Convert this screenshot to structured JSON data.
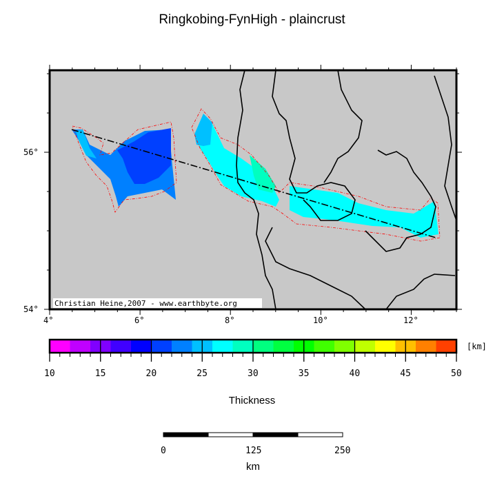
{
  "title": "Ringkobing-FynHigh - plaincrust",
  "map": {
    "lon_labels": [
      "4°",
      "6°",
      "8°",
      "10°",
      "12°"
    ],
    "lat_labels": [
      "56°",
      "54°"
    ],
    "credit": "Christian Heine,2007 - www.earthbyte.org",
    "land_color": "#c8c8c8",
    "outline_color": "#ff0000"
  },
  "colorbar": {
    "unit": "[km]",
    "title": "Thickness",
    "tick_labels": [
      "10",
      "15",
      "20",
      "25",
      "30",
      "35",
      "40",
      "45",
      "50"
    ],
    "range": [
      10,
      50
    ],
    "colors": [
      "#ff00ff",
      "#c000ff",
      "#8000ff",
      "#4000ff",
      "#0000ff",
      "#0040ff",
      "#0080ff",
      "#00c0ff",
      "#00ffff",
      "#00ffc0",
      "#00ff80",
      "#00ff40",
      "#00ff00",
      "#40ff00",
      "#80ff00",
      "#c0ff00",
      "#ffff00",
      "#ffc000",
      "#ff8000",
      "#ff4000"
    ]
  },
  "scalebar": {
    "labels": [
      "0",
      "125",
      "250"
    ],
    "unit": "km"
  }
}
